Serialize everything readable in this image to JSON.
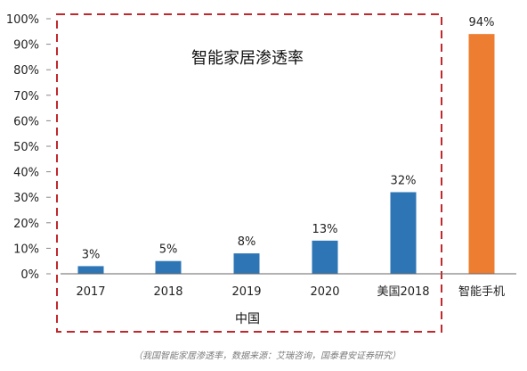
{
  "chart_data": {
    "type": "bar",
    "categories": [
      "2017",
      "2018",
      "2019",
      "2020",
      "美国2018",
      "智能手机"
    ],
    "values": [
      3,
      5,
      8,
      13,
      32,
      94
    ],
    "data_labels": [
      "3%",
      "5%",
      "8%",
      "13%",
      "32%",
      "94%"
    ],
    "bar_colors": [
      "#2e75b6",
      "#2e75b6",
      "#2e75b6",
      "#2e75b6",
      "#2e75b6",
      "#ed7d31"
    ],
    "ylim": [
      0,
      100
    ],
    "yticks": [
      "0%",
      "10%",
      "20%",
      "30%",
      "40%",
      "50%",
      "60%",
      "70%",
      "80%",
      "90%",
      "100%"
    ],
    "grid": false,
    "panel_title": "智能家居渗透率",
    "group_label": "中国",
    "group_box_color": "#c0282d"
  },
  "caption": "（我国智能家居渗透率，数据来源：艾瑞咨询，国泰君安证券研究）"
}
